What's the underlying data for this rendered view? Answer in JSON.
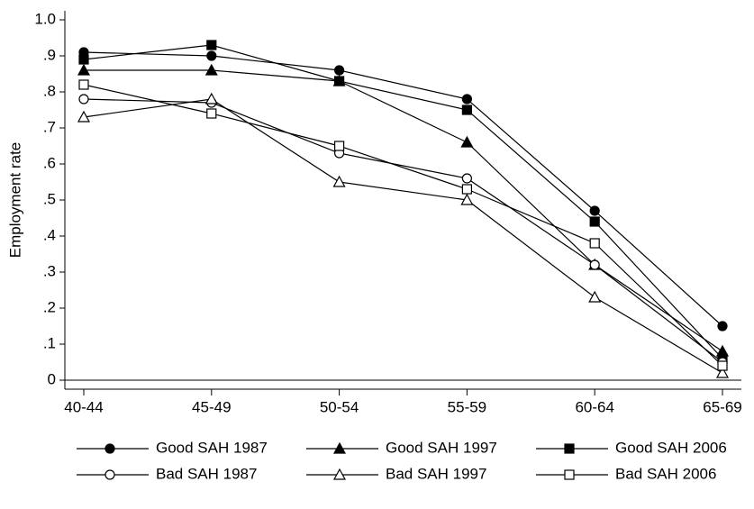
{
  "chart_data": {
    "type": "line",
    "y_label": "Employment rate",
    "categories": [
      "40-44",
      "45-49",
      "50-54",
      "55-59",
      "60-64",
      "65-69"
    ],
    "ylim": [
      -0.025,
      1.025
    ],
    "yticks": [
      0,
      {
        "value": 0.1,
        "label": ".1"
      },
      {
        "value": 0.2,
        "label": ".2"
      },
      {
        "value": 0.3,
        "label": ".3"
      },
      {
        "value": 0.4,
        "label": ".4"
      },
      {
        "value": 0.5,
        "label": ".5"
      },
      {
        "value": 0.6,
        "label": ".6"
      },
      {
        "value": 0.7,
        "label": ".7"
      },
      {
        "value": 0.8,
        "label": ".8"
      },
      {
        "value": 0.9,
        "label": ".9"
      },
      {
        "value": 1,
        "label": "1.0"
      }
    ],
    "series": [
      {
        "name": "Good SAH 1987",
        "color": "#000000",
        "marker": "circle",
        "filled": true,
        "values": [
          0.91,
          0.9,
          0.86,
          0.78,
          0.47,
          0.15
        ]
      },
      {
        "name": "Good SAH 1997",
        "color": "#000000",
        "marker": "triangle",
        "filled": true,
        "values": [
          0.86,
          0.86,
          0.83,
          0.66,
          0.32,
          0.08
        ]
      },
      {
        "name": "Good SAH 2006",
        "color": "#000000",
        "marker": "square",
        "filled": true,
        "values": [
          0.89,
          0.93,
          0.83,
          0.75,
          0.44,
          0.06
        ]
      },
      {
        "name": "Bad SAH 1987",
        "color": "#000000",
        "marker": "circle",
        "filled": false,
        "values": [
          0.78,
          0.77,
          0.63,
          0.56,
          0.32,
          0.05
        ]
      },
      {
        "name": "Bad SAH 1997",
        "color": "#000000",
        "marker": "triangle",
        "filled": false,
        "values": [
          0.73,
          0.78,
          0.55,
          0.5,
          0.23,
          0.02
        ]
      },
      {
        "name": "Bad SAH 2006",
        "color": "#000000",
        "marker": "square",
        "filled": false,
        "values": [
          0.82,
          0.74,
          0.65,
          0.53,
          0.38,
          0.04
        ]
      }
    ]
  }
}
